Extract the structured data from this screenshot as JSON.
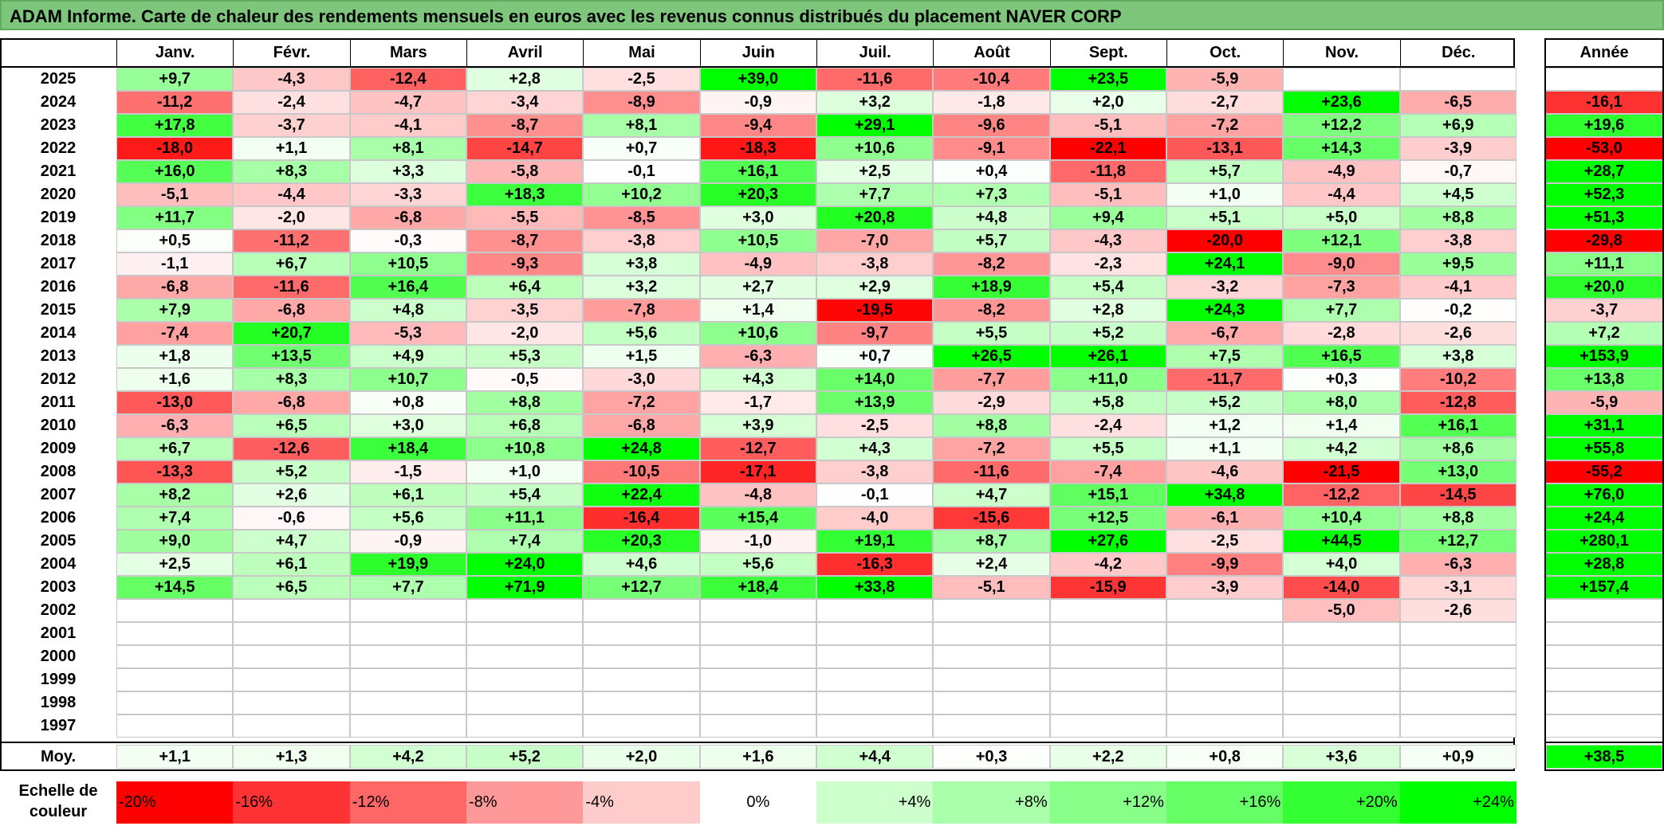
{
  "chart_data": {
    "type": "heatmap",
    "title": "ADAM Informe. Carte de chaleur des rendements mensuels en euros avec les revenus connus distribués du placement NAVER CORP",
    "months": [
      "Janv.",
      "Févr.",
      "Mars",
      "Avril",
      "Mai",
      "Juin",
      "Juil.",
      "Août",
      "Sept.",
      "Oct.",
      "Nov.",
      "Déc."
    ],
    "year_column_label": "Année",
    "rows": [
      {
        "year": "2025",
        "values": [
          "+9,7",
          "-4,3",
          "-12,4",
          "+2,8",
          "-2,5",
          "+39,0",
          "-11,6",
          "-10,4",
          "+23,5",
          "-5,9",
          "",
          ""
        ],
        "annual": ""
      },
      {
        "year": "2024",
        "values": [
          "-11,2",
          "-2,4",
          "-4,7",
          "-3,4",
          "-8,9",
          "-0,9",
          "+3,2",
          "-1,8",
          "+2,0",
          "-2,7",
          "+23,6",
          "-6,5"
        ],
        "annual": "-16,1"
      },
      {
        "year": "2023",
        "values": [
          "+17,8",
          "-3,7",
          "-4,1",
          "-8,7",
          "+8,1",
          "-9,4",
          "+29,1",
          "-9,6",
          "-5,1",
          "-7,2",
          "+12,2",
          "+6,9"
        ],
        "annual": "+19,6"
      },
      {
        "year": "2022",
        "values": [
          "-18,0",
          "+1,1",
          "+8,1",
          "-14,7",
          "+0,7",
          "-18,3",
          "+10,6",
          "-9,1",
          "-22,1",
          "-13,1",
          "+14,3",
          "-3,9"
        ],
        "annual": "-53,0"
      },
      {
        "year": "2021",
        "values": [
          "+16,0",
          "+8,3",
          "+3,3",
          "-5,8",
          "-0,1",
          "+16,1",
          "+2,5",
          "+0,4",
          "-11,8",
          "+5,7",
          "-4,9",
          "-0,7"
        ],
        "annual": "+28,7"
      },
      {
        "year": "2020",
        "values": [
          "-5,1",
          "-4,4",
          "-3,3",
          "+18,3",
          "+10,2",
          "+20,3",
          "+7,7",
          "+7,3",
          "-5,1",
          "+1,0",
          "-4,4",
          "+4,5"
        ],
        "annual": "+52,3"
      },
      {
        "year": "2019",
        "values": [
          "+11,7",
          "-2,0",
          "-6,8",
          "-5,5",
          "-8,5",
          "+3,0",
          "+20,8",
          "+4,8",
          "+9,4",
          "+5,1",
          "+5,0",
          "+8,8"
        ],
        "annual": "+51,3"
      },
      {
        "year": "2018",
        "values": [
          "+0,5",
          "-11,2",
          "-0,3",
          "-8,7",
          "-3,8",
          "+10,5",
          "-7,0",
          "+5,7",
          "-4,3",
          "-20,0",
          "+12,1",
          "-3,8"
        ],
        "annual": "-29,8"
      },
      {
        "year": "2017",
        "values": [
          "-1,1",
          "+6,7",
          "+10,5",
          "-9,3",
          "+3,8",
          "-4,9",
          "-3,8",
          "-8,2",
          "-2,3",
          "+24,1",
          "-9,0",
          "+9,5"
        ],
        "annual": "+11,1"
      },
      {
        "year": "2016",
        "values": [
          "-6,8",
          "-11,6",
          "+16,4",
          "+6,4",
          "+3,2",
          "+2,7",
          "+2,9",
          "+18,9",
          "+5,4",
          "-3,2",
          "-7,3",
          "-4,1"
        ],
        "annual": "+20,0"
      },
      {
        "year": "2015",
        "values": [
          "+7,9",
          "-6,8",
          "+4,8",
          "-3,5",
          "-7,8",
          "+1,4",
          "-19,5",
          "-8,2",
          "+2,8",
          "+24,3",
          "+7,7",
          "-0,2"
        ],
        "annual": "-3,7"
      },
      {
        "year": "2014",
        "values": [
          "-7,4",
          "+20,7",
          "-5,3",
          "-2,0",
          "+5,6",
          "+10,6",
          "-9,7",
          "+5,5",
          "+5,2",
          "-6,7",
          "-2,8",
          "-2,6"
        ],
        "annual": "+7,2"
      },
      {
        "year": "2013",
        "values": [
          "+1,8",
          "+13,5",
          "+4,9",
          "+5,3",
          "+1,5",
          "-6,3",
          "+0,7",
          "+26,5",
          "+26,1",
          "+7,5",
          "+16,5",
          "+3,8"
        ],
        "annual": "+153,9"
      },
      {
        "year": "2012",
        "values": [
          "+1,6",
          "+8,3",
          "+10,7",
          "-0,5",
          "-3,0",
          "+4,3",
          "+14,0",
          "-7,7",
          "+11,0",
          "-11,7",
          "+0,3",
          "-10,2"
        ],
        "annual": "+13,8"
      },
      {
        "year": "2011",
        "values": [
          "-13,0",
          "-6,8",
          "+0,8",
          "+8,8",
          "-7,2",
          "-1,7",
          "+13,9",
          "-2,9",
          "+5,8",
          "+5,2",
          "+8,0",
          "-12,8"
        ],
        "annual": "-5,9"
      },
      {
        "year": "2010",
        "values": [
          "-6,3",
          "+6,5",
          "+3,0",
          "+6,8",
          "-6,8",
          "+3,9",
          "-2,5",
          "+8,8",
          "-2,4",
          "+1,2",
          "+1,4",
          "+16,1"
        ],
        "annual": "+31,1"
      },
      {
        "year": "2009",
        "values": [
          "+6,7",
          "-12,6",
          "+18,4",
          "+10,8",
          "+24,8",
          "-12,7",
          "+4,3",
          "-7,2",
          "+5,5",
          "+1,1",
          "+4,2",
          "+8,6"
        ],
        "annual": "+55,8"
      },
      {
        "year": "2008",
        "values": [
          "-13,3",
          "+5,2",
          "-1,5",
          "+1,0",
          "-10,5",
          "-17,1",
          "-3,8",
          "-11,6",
          "-7,4",
          "-4,6",
          "-21,5",
          "+13,0"
        ],
        "annual": "-55,2"
      },
      {
        "year": "2007",
        "values": [
          "+8,2",
          "+2,6",
          "+6,1",
          "+5,4",
          "+22,4",
          "-4,8",
          "-0,1",
          "+4,7",
          "+15,1",
          "+34,8",
          "-12,2",
          "-14,5"
        ],
        "annual": "+76,0"
      },
      {
        "year": "2006",
        "values": [
          "+7,4",
          "-0,6",
          "+5,6",
          "+11,1",
          "-16,4",
          "+15,4",
          "-4,0",
          "-15,6",
          "+12,5",
          "-6,1",
          "+10,4",
          "+8,8"
        ],
        "annual": "+24,4"
      },
      {
        "year": "2005",
        "values": [
          "+9,0",
          "+4,7",
          "-0,9",
          "+7,4",
          "+20,3",
          "-1,0",
          "+19,1",
          "+8,7",
          "+27,6",
          "-2,5",
          "+44,5",
          "+12,7"
        ],
        "annual": "+280,1"
      },
      {
        "year": "2004",
        "values": [
          "+2,5",
          "+6,1",
          "+19,9",
          "+24,0",
          "+4,6",
          "+5,6",
          "-16,3",
          "+2,4",
          "-4,2",
          "-9,9",
          "+4,0",
          "-6,3"
        ],
        "annual": "+28,8"
      },
      {
        "year": "2003",
        "values": [
          "+14,5",
          "+6,5",
          "+7,7",
          "+71,9",
          "+12,7",
          "+18,4",
          "+33,8",
          "-5,1",
          "-15,9",
          "-3,9",
          "-14,0",
          "-3,1"
        ],
        "annual": "+157,4"
      },
      {
        "year": "2002",
        "values": [
          "",
          "",
          "",
          "",
          "",
          "",
          "",
          "",
          "",
          "",
          "-5,0",
          "-2,6"
        ],
        "annual": ""
      },
      {
        "year": "2001",
        "values": [
          "",
          "",
          "",
          "",
          "",
          "",
          "",
          "",
          "",
          "",
          "",
          ""
        ],
        "annual": ""
      },
      {
        "year": "2000",
        "values": [
          "",
          "",
          "",
          "",
          "",
          "",
          "",
          "",
          "",
          "",
          "",
          ""
        ],
        "annual": ""
      },
      {
        "year": "1999",
        "values": [
          "",
          "",
          "",
          "",
          "",
          "",
          "",
          "",
          "",
          "",
          "",
          ""
        ],
        "annual": ""
      },
      {
        "year": "1998",
        "values": [
          "",
          "",
          "",
          "",
          "",
          "",
          "",
          "",
          "",
          "",
          "",
          ""
        ],
        "annual": ""
      },
      {
        "year": "1997",
        "values": [
          "",
          "",
          "",
          "",
          "",
          "",
          "",
          "",
          "",
          "",
          "",
          ""
        ],
        "annual": ""
      }
    ],
    "average": {
      "label": "Moy.",
      "values": [
        "+1,1",
        "+1,3",
        "+4,2",
        "+5,2",
        "+2,0",
        "+1,6",
        "+4,4",
        "+0,3",
        "+2,2",
        "+0,8",
        "+3,6",
        "+0,9"
      ],
      "annual": "+38,5"
    },
    "color_scale": {
      "label": "Echelle de couleur",
      "stops": [
        {
          "label": "-20%",
          "value": -20,
          "color": "#ff0000"
        },
        {
          "label": "-16%",
          "value": -16,
          "color": "#ff3333"
        },
        {
          "label": "-12%",
          "value": -12,
          "color": "#ff6666"
        },
        {
          "label": "-8%",
          "value": -8,
          "color": "#ff9999"
        },
        {
          "label": "-4%",
          "value": -4,
          "color": "#ffcccc"
        },
        {
          "label": "0%",
          "value": 0,
          "color": "#ffffff"
        },
        {
          "label": "+4%",
          "value": 4,
          "color": "#ccffcc"
        },
        {
          "label": "+8%",
          "value": 8,
          "color": "#aaffaa"
        },
        {
          "label": "+12%",
          "value": 12,
          "color": "#88ff88"
        },
        {
          "label": "+16%",
          "value": 16,
          "color": "#66ff66"
        },
        {
          "label": "+20%",
          "value": 20,
          "color": "#33ff33"
        },
        {
          "label": "+24%",
          "value": 24,
          "color": "#00ff00"
        }
      ]
    }
  }
}
